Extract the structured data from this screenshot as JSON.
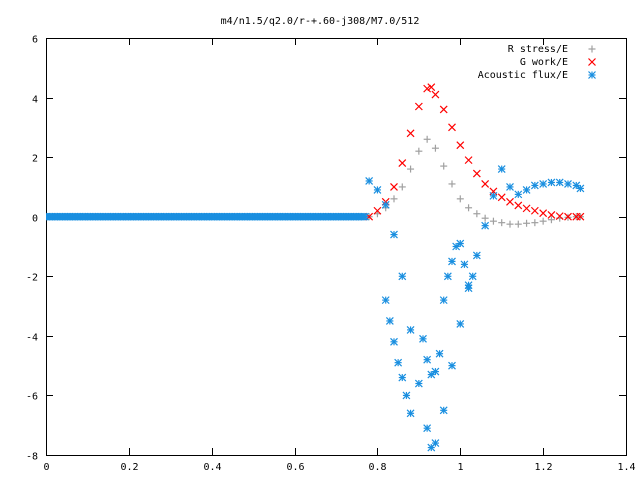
{
  "chart_data": {
    "type": "scatter",
    "title": "m4/n1.5/q2.0/r-+.60-j308/M7.0/512",
    "xlabel": "",
    "ylabel": "",
    "xlim": [
      0,
      1.4
    ],
    "ylim": [
      -8,
      6
    ],
    "x_ticks": [
      "0",
      "0.2",
      "0.4",
      "0.6",
      "0.8",
      "1",
      "1.2",
      "1.4"
    ],
    "y_ticks": [
      "6",
      "4",
      "2",
      "0",
      "-2",
      "-4",
      "-6",
      "-8"
    ],
    "grid": false,
    "legend_position": "top-right",
    "series": [
      {
        "name": "R stress/E",
        "marker": "plus",
        "color": "#a0a0a0",
        "points": [
          [
            0.78,
            0.0
          ],
          [
            0.8,
            0.1
          ],
          [
            0.82,
            0.3
          ],
          [
            0.84,
            0.6
          ],
          [
            0.86,
            1.0
          ],
          [
            0.88,
            1.6
          ],
          [
            0.9,
            2.2
          ],
          [
            0.92,
            2.6
          ],
          [
            0.94,
            2.3
          ],
          [
            0.96,
            1.7
          ],
          [
            0.98,
            1.1
          ],
          [
            1.0,
            0.6
          ],
          [
            1.02,
            0.3
          ],
          [
            1.04,
            0.1
          ],
          [
            1.06,
            -0.05
          ],
          [
            1.08,
            -0.15
          ],
          [
            1.1,
            -0.2
          ],
          [
            1.12,
            -0.25
          ],
          [
            1.14,
            -0.25
          ],
          [
            1.16,
            -0.22
          ],
          [
            1.18,
            -0.2
          ],
          [
            1.2,
            -0.15
          ],
          [
            1.22,
            -0.1
          ],
          [
            1.24,
            -0.05
          ],
          [
            1.26,
            -0.02
          ],
          [
            1.28,
            0.0
          ],
          [
            1.29,
            0.0
          ]
        ]
      },
      {
        "name": "G work/E",
        "marker": "cross",
        "color": "#ff0000",
        "points": [
          [
            0.78,
            0.0
          ],
          [
            0.8,
            0.2
          ],
          [
            0.82,
            0.5
          ],
          [
            0.84,
            1.0
          ],
          [
            0.86,
            1.8
          ],
          [
            0.88,
            2.8
          ],
          [
            0.9,
            3.7
          ],
          [
            0.92,
            4.3
          ],
          [
            0.93,
            4.35
          ],
          [
            0.94,
            4.1
          ],
          [
            0.96,
            3.6
          ],
          [
            0.98,
            3.0
          ],
          [
            1.0,
            2.4
          ],
          [
            1.02,
            1.9
          ],
          [
            1.04,
            1.45
          ],
          [
            1.06,
            1.1
          ],
          [
            1.08,
            0.85
          ],
          [
            1.1,
            0.65
          ],
          [
            1.12,
            0.5
          ],
          [
            1.14,
            0.38
          ],
          [
            1.16,
            0.28
          ],
          [
            1.18,
            0.2
          ],
          [
            1.2,
            0.12
          ],
          [
            1.22,
            0.06
          ],
          [
            1.24,
            0.02
          ],
          [
            1.26,
            0.0
          ],
          [
            1.28,
            0.0
          ],
          [
            1.29,
            0.0
          ]
        ]
      },
      {
        "name": "Acoustic flux/E",
        "marker": "star",
        "color": "#1a8fe0",
        "baseline": {
          "x_start": 0.0,
          "x_end": 0.77,
          "y": 0.0
        },
        "points": [
          [
            0.78,
            1.2
          ],
          [
            0.8,
            0.9
          ],
          [
            0.82,
            0.4
          ],
          [
            0.84,
            -0.6
          ],
          [
            0.86,
            -2.0
          ],
          [
            0.88,
            -3.8
          ],
          [
            0.9,
            -5.6
          ],
          [
            0.92,
            -7.1
          ],
          [
            0.93,
            -7.75
          ],
          [
            0.94,
            -7.6
          ],
          [
            0.96,
            -6.5
          ],
          [
            0.98,
            -5.0
          ],
          [
            1.0,
            -3.6
          ],
          [
            1.02,
            -2.4
          ],
          [
            1.04,
            -1.3
          ],
          [
            1.06,
            -0.3
          ],
          [
            1.08,
            0.7
          ],
          [
            1.1,
            1.6
          ],
          [
            1.12,
            1.0
          ],
          [
            1.14,
            0.75
          ],
          [
            1.16,
            0.9
          ],
          [
            1.18,
            1.05
          ],
          [
            1.2,
            1.1
          ],
          [
            1.22,
            1.15
          ],
          [
            1.24,
            1.15
          ],
          [
            1.26,
            1.1
          ],
          [
            1.28,
            1.05
          ],
          [
            1.29,
            0.95
          ]
        ]
      },
      {
        "name": "",
        "marker": "star",
        "color": "#1a8fe0",
        "points": [
          [
            0.82,
            -2.8
          ],
          [
            0.83,
            -3.5
          ],
          [
            0.84,
            -4.2
          ],
          [
            0.85,
            -4.9
          ],
          [
            0.86,
            -5.4
          ],
          [
            0.87,
            -6.0
          ],
          [
            0.88,
            -6.6
          ],
          [
            0.91,
            -4.1
          ],
          [
            0.92,
            -4.8
          ],
          [
            0.93,
            -5.3
          ],
          [
            0.94,
            -5.2
          ],
          [
            0.95,
            -4.6
          ],
          [
            0.96,
            -2.8
          ],
          [
            0.97,
            -2.0
          ],
          [
            0.98,
            -1.5
          ],
          [
            0.99,
            -1.0
          ],
          [
            1.0,
            -0.9
          ],
          [
            1.01,
            -1.6
          ],
          [
            1.02,
            -2.3
          ],
          [
            1.03,
            -2.0
          ]
        ]
      }
    ]
  }
}
